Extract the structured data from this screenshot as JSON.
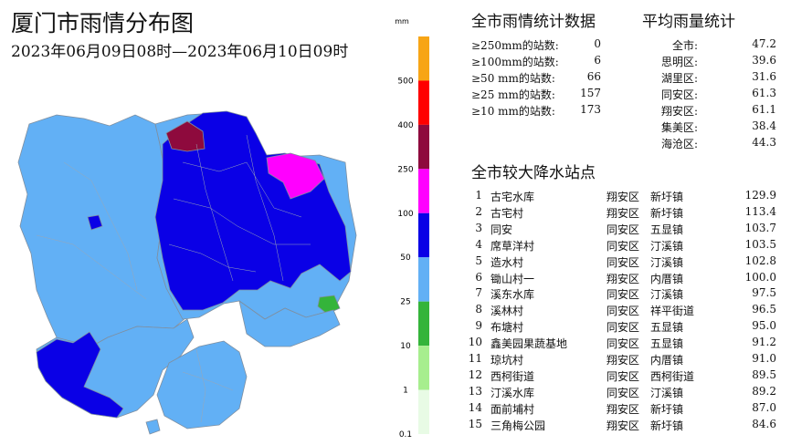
{
  "header": {
    "title": "厦门市雨情分布图",
    "subtitle": "2023年06月09日08时—2023年06月10日09时"
  },
  "legend": {
    "unit": "mm",
    "labels": [
      "500",
      "400",
      "250",
      "100",
      "50",
      "25",
      "10",
      "1",
      "0.1"
    ],
    "colors": [
      "#f7a516",
      "#ff0000",
      "#8e0a3d",
      "#ff00ff",
      "#0a00e6",
      "#62b0f5",
      "#34b43a",
      "#a7ee8e",
      "#e8fbe5"
    ]
  },
  "stats": {
    "title": "全市雨情统计数据",
    "rows": [
      {
        "label": "≥250mm的站数:",
        "value": "0"
      },
      {
        "label": "≥100mm的站数:",
        "value": "6"
      },
      {
        "label": "≥50 mm的站数:",
        "value": "66"
      },
      {
        "label": "≥25 mm的站数:",
        "value": "157"
      },
      {
        "label": "≥10 mm的站数:",
        "value": "173"
      }
    ]
  },
  "average": {
    "title": "平均雨量统计",
    "rows": [
      {
        "label": "全市:",
        "value": "47.2"
      },
      {
        "label": "思明区:",
        "value": "39.6"
      },
      {
        "label": "湖里区:",
        "value": "31.6"
      },
      {
        "label": "同安区:",
        "value": "61.3"
      },
      {
        "label": "翔安区:",
        "value": "61.1"
      },
      {
        "label": "集美区:",
        "value": "38.4"
      },
      {
        "label": "海沧区:",
        "value": "44.3"
      }
    ]
  },
  "stations": {
    "title": "全市较大降水站点",
    "rows": [
      {
        "rank": "1",
        "name": "古宅水库",
        "district": "翔安区",
        "town": "新圩镇",
        "value": "129.9"
      },
      {
        "rank": "2",
        "name": "古宅村",
        "district": "翔安区",
        "town": "新圩镇",
        "value": "113.4"
      },
      {
        "rank": "3",
        "name": "同安",
        "district": "同安区",
        "town": "五显镇",
        "value": "103.7"
      },
      {
        "rank": "4",
        "name": "席草洋村",
        "district": "同安区",
        "town": "汀溪镇",
        "value": "103.5"
      },
      {
        "rank": "5",
        "name": "造水村",
        "district": "同安区",
        "town": "汀溪镇",
        "value": "102.8"
      },
      {
        "rank": "6",
        "name": "锄山村一",
        "district": "翔安区",
        "town": "内厝镇",
        "value": "100.0"
      },
      {
        "rank": "7",
        "name": "溪东水库",
        "district": "同安区",
        "town": "汀溪镇",
        "value": "97.5"
      },
      {
        "rank": "8",
        "name": "溪林村",
        "district": "同安区",
        "town": "祥平街道",
        "value": "96.5"
      },
      {
        "rank": "9",
        "name": "布塘村",
        "district": "同安区",
        "town": "五显镇",
        "value": "95.0"
      },
      {
        "rank": "10",
        "name": "鑫美园果蔬基地",
        "district": "同安区",
        "town": "五显镇",
        "value": "91.2"
      },
      {
        "rank": "11",
        "name": "琼坑村",
        "district": "翔安区",
        "town": "内厝镇",
        "value": "91.0"
      },
      {
        "rank": "12",
        "name": "西柯街道",
        "district": "同安区",
        "town": "西柯街道",
        "value": "89.5"
      },
      {
        "rank": "13",
        "name": "汀溪水库",
        "district": "同安区",
        "town": "汀溪镇",
        "value": "89.2"
      },
      {
        "rank": "14",
        "name": "面前埔村",
        "district": "翔安区",
        "town": "新圩镇",
        "value": "87.0"
      },
      {
        "rank": "15",
        "name": "三角梅公园",
        "district": "翔安区",
        "town": "新圩镇",
        "value": "84.6"
      }
    ]
  }
}
